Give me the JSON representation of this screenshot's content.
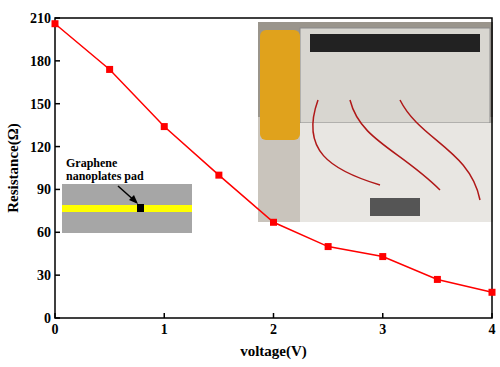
{
  "chart_data": {
    "type": "line",
    "x_label": "voltage(V)",
    "y_label": "Resistance(Ω)",
    "x": [
      0,
      0.5,
      1,
      1.5,
      2,
      2.5,
      3,
      3.5,
      4
    ],
    "series": [
      {
        "name": "Resistance",
        "color": "#ff0000",
        "marker": "square",
        "line_style": "solid",
        "values": [
          206,
          174,
          134,
          100,
          67,
          50,
          43,
          27,
          18
        ]
      }
    ],
    "xlim": [
      0,
      4
    ],
    "xticks": [
      0,
      1,
      2,
      3,
      4
    ],
    "ylim": [
      0,
      210
    ],
    "yticks": [
      0,
      30,
      60,
      90,
      120,
      150,
      180,
      210
    ],
    "grid": false,
    "annotations": [
      {
        "text": "Graphene nanoplates pad"
      }
    ]
  }
}
